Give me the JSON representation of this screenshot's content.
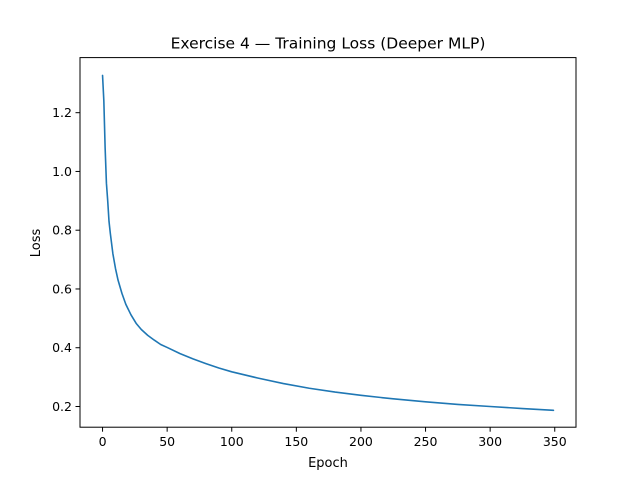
{
  "chart_data": {
    "type": "line",
    "title": "Exercise 4 — Training Loss (Deeper MLP)",
    "xlabel": "Epoch",
    "ylabel": "Loss",
    "xlim": [
      -17.45,
      366.45
    ],
    "ylim": [
      0.1295,
      1.3875
    ],
    "xticks": [
      0,
      50,
      100,
      150,
      200,
      250,
      300,
      350
    ],
    "xtick_labels": [
      "0",
      "50",
      "100",
      "150",
      "200",
      "250",
      "300",
      "350"
    ],
    "yticks": [
      0.2,
      0.4,
      0.6,
      0.8,
      1.0,
      1.2
    ],
    "ytick_labels": [
      "0.2",
      "0.4",
      "0.6",
      "0.8",
      "1.0",
      "1.2"
    ],
    "grid": false,
    "series": [
      {
        "name": "Training Loss",
        "color": "#1f77b4",
        "x": [
          0,
          1,
          2,
          3,
          4,
          5,
          6,
          8,
          10,
          12,
          15,
          18,
          22,
          26,
          30,
          35,
          40,
          45,
          50,
          60,
          70,
          80,
          90,
          100,
          120,
          140,
          160,
          180,
          200,
          225,
          250,
          275,
          300,
          325,
          349
        ],
        "values": [
          1.327,
          1.24,
          1.08,
          0.96,
          0.9,
          0.83,
          0.79,
          0.72,
          0.67,
          0.63,
          0.585,
          0.548,
          0.512,
          0.483,
          0.462,
          0.442,
          0.426,
          0.411,
          0.401,
          0.38,
          0.362,
          0.346,
          0.331,
          0.318,
          0.297,
          0.278,
          0.262,
          0.249,
          0.238,
          0.226,
          0.216,
          0.207,
          0.2,
          0.193,
          0.187
        ]
      }
    ]
  }
}
